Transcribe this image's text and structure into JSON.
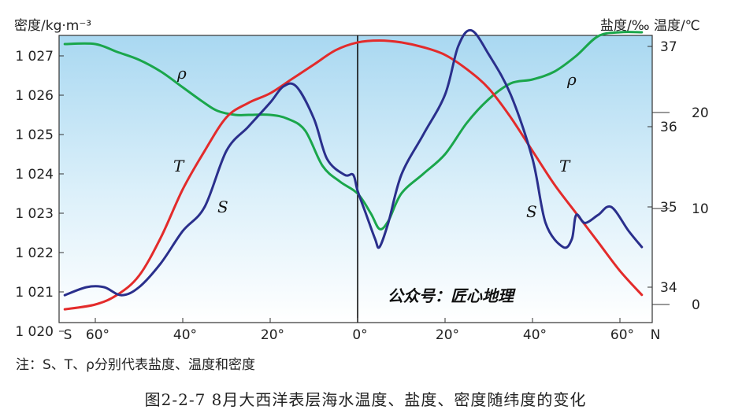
{
  "chart_data": {
    "type": "line",
    "left_axis_title": "密度/kg·m⁻³",
    "right_axis_title": "盐度/‰ 温度/℃",
    "x_ticks": [
      "S",
      "60°",
      "40°",
      "20°",
      "0°",
      "20°",
      "40°",
      "60°",
      "N"
    ],
    "density_ticks": [
      "1 027",
      "1 026",
      "1 025",
      "1 024",
      "1 023",
      "1 022",
      "1 021",
      "1 020"
    ],
    "salinity_ticks": [
      "37",
      "36",
      "35",
      "34"
    ],
    "temperature_ticks": [
      "20",
      "10",
      "0"
    ],
    "x_note": "x = latitude, negative = south, positive = north",
    "series": [
      {
        "name": "ρ",
        "axis": "density",
        "color": "#1aa64b",
        "x": [
          -67,
          -60,
          -55,
          -50,
          -45,
          -40,
          -35,
          -32,
          -28,
          -25,
          -20,
          -16,
          -12,
          -8,
          -4,
          0,
          3,
          5,
          7,
          10,
          15,
          20,
          25,
          30,
          35,
          40,
          45,
          50,
          55,
          60,
          65
        ],
        "y": [
          1027.3,
          1027.3,
          1027.1,
          1026.9,
          1026.6,
          1026.2,
          1025.8,
          1025.6,
          1025.5,
          1025.5,
          1025.5,
          1025.4,
          1025.1,
          1024.2,
          1023.8,
          1023.5,
          1023.0,
          1022.6,
          1022.8,
          1023.5,
          1024.0,
          1024.5,
          1025.3,
          1025.9,
          1026.3,
          1026.4,
          1026.6,
          1027.0,
          1027.5,
          1027.6,
          1027.6
        ]
      },
      {
        "name": "T",
        "axis": "temperature",
        "color": "#e32b2b",
        "x": [
          -67,
          -60,
          -55,
          -50,
          -45,
          -40,
          -35,
          -30,
          -25,
          -20,
          -15,
          -10,
          -5,
          0,
          5,
          10,
          15,
          20,
          25,
          30,
          35,
          40,
          45,
          50,
          55,
          60,
          65
        ],
        "y": [
          -0.5,
          0,
          1,
          3,
          7,
          12,
          16,
          19.5,
          21,
          22,
          23.5,
          25,
          26.5,
          27.3,
          27.5,
          27.3,
          26.8,
          26,
          24.5,
          22.5,
          19.5,
          16,
          12.5,
          9.5,
          6.5,
          3.5,
          1
        ]
      },
      {
        "name": "S",
        "axis": "salinity",
        "color": "#2a2f8c",
        "x": [
          -67,
          -62,
          -58,
          -54,
          -50,
          -45,
          -40,
          -35,
          -30,
          -25,
          -20,
          -17,
          -14,
          -10,
          -7,
          -3,
          -1,
          0,
          2,
          4,
          5,
          7,
          10,
          15,
          20,
          23,
          26,
          30,
          35,
          40,
          43,
          47,
          49,
          50,
          52,
          55,
          58,
          62,
          65
        ],
        "y": [
          33.9,
          34.0,
          34.0,
          33.9,
          34.0,
          34.3,
          34.7,
          35.0,
          35.7,
          36.0,
          36.3,
          36.5,
          36.5,
          36.1,
          35.6,
          35.4,
          35.4,
          35.2,
          34.9,
          34.6,
          34.5,
          34.8,
          35.4,
          35.9,
          36.4,
          37.0,
          37.2,
          36.9,
          36.4,
          35.6,
          34.8,
          34.5,
          34.6,
          34.9,
          34.8,
          34.9,
          35.0,
          34.7,
          34.5
        ]
      }
    ],
    "curve_labels": [
      {
        "text": "ρ",
        "series": "ρ"
      },
      {
        "text": "T",
        "series": "T"
      },
      {
        "text": "S",
        "series": "S"
      },
      {
        "text": "ρ",
        "series": "ρ"
      },
      {
        "text": "T",
        "series": "T"
      },
      {
        "text": "S",
        "series": "S"
      }
    ]
  },
  "note": "注：S、T、ρ分别代表盐度、温度和密度",
  "caption": "图2-2-7   8月大西洋表层海水温度、盐度、密度随纬度的变化",
  "watermark": "公众号：匠心地理"
}
